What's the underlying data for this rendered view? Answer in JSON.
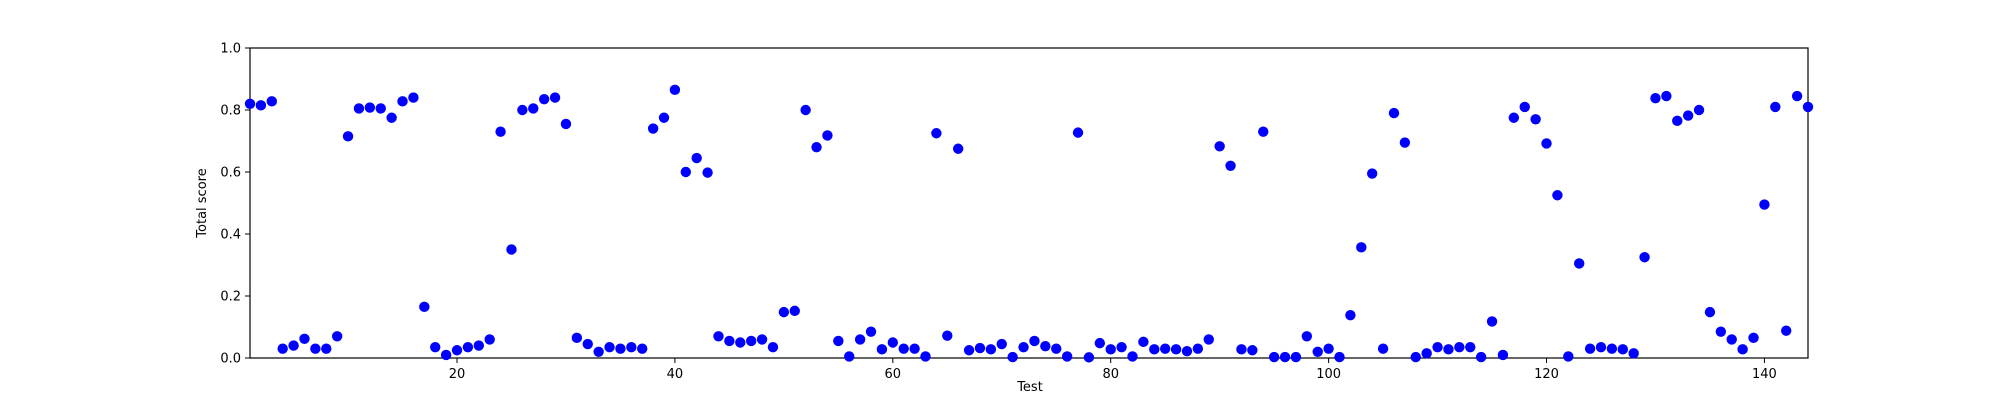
{
  "chart_data": {
    "type": "scatter",
    "title": "",
    "xlabel": "Test",
    "ylabel": "Total score",
    "xlim": [
      1,
      144
    ],
    "ylim": [
      0.0,
      1.0
    ],
    "xticks": [
      20,
      40,
      60,
      80,
      100,
      120,
      140
    ],
    "yticks": [
      0.0,
      0.2,
      0.4,
      0.6,
      0.8,
      1.0
    ],
    "ytick_labels": [
      "0.0",
      "0.2",
      "0.4",
      "0.6",
      "0.8",
      "1.0"
    ],
    "grid": false,
    "marker_color": "#0000ff",
    "points": [
      {
        "x": 1,
        "y": 0.82
      },
      {
        "x": 2,
        "y": 0.815
      },
      {
        "x": 3,
        "y": 0.828
      },
      {
        "x": 4,
        "y": 0.03
      },
      {
        "x": 5,
        "y": 0.04
      },
      {
        "x": 6,
        "y": 0.062
      },
      {
        "x": 7,
        "y": 0.03
      },
      {
        "x": 8,
        "y": 0.03
      },
      {
        "x": 9,
        "y": 0.07
      },
      {
        "x": 10,
        "y": 0.715
      },
      {
        "x": 11,
        "y": 0.805
      },
      {
        "x": 12,
        "y": 0.808
      },
      {
        "x": 13,
        "y": 0.805
      },
      {
        "x": 14,
        "y": 0.775
      },
      {
        "x": 15,
        "y": 0.828
      },
      {
        "x": 16,
        "y": 0.84
      },
      {
        "x": 17,
        "y": 0.165
      },
      {
        "x": 18,
        "y": 0.035
      },
      {
        "x": 19,
        "y": 0.01
      },
      {
        "x": 20,
        "y": 0.025
      },
      {
        "x": 21,
        "y": 0.035
      },
      {
        "x": 22,
        "y": 0.04
      },
      {
        "x": 23,
        "y": 0.06
      },
      {
        "x": 24,
        "y": 0.73
      },
      {
        "x": 25,
        "y": 0.35
      },
      {
        "x": 26,
        "y": 0.8
      },
      {
        "x": 27,
        "y": 0.805
      },
      {
        "x": 28,
        "y": 0.835
      },
      {
        "x": 29,
        "y": 0.84
      },
      {
        "x": 30,
        "y": 0.755
      },
      {
        "x": 31,
        "y": 0.065
      },
      {
        "x": 32,
        "y": 0.045
      },
      {
        "x": 33,
        "y": 0.02
      },
      {
        "x": 34,
        "y": 0.035
      },
      {
        "x": 35,
        "y": 0.03
      },
      {
        "x": 36,
        "y": 0.035
      },
      {
        "x": 37,
        "y": 0.03
      },
      {
        "x": 38,
        "y": 0.74
      },
      {
        "x": 39,
        "y": 0.775
      },
      {
        "x": 40,
        "y": 0.865
      },
      {
        "x": 41,
        "y": 0.6
      },
      {
        "x": 42,
        "y": 0.645
      },
      {
        "x": 43,
        "y": 0.598
      },
      {
        "x": 44,
        "y": 0.07
      },
      {
        "x": 45,
        "y": 0.055
      },
      {
        "x": 46,
        "y": 0.05
      },
      {
        "x": 47,
        "y": 0.055
      },
      {
        "x": 48,
        "y": 0.06
      },
      {
        "x": 49,
        "y": 0.035
      },
      {
        "x": 50,
        "y": 0.148
      },
      {
        "x": 51,
        "y": 0.152
      },
      {
        "x": 52,
        "y": 0.8
      },
      {
        "x": 53,
        "y": 0.68
      },
      {
        "x": 54,
        "y": 0.718
      },
      {
        "x": 55,
        "y": 0.055
      },
      {
        "x": 56,
        "y": 0.005
      },
      {
        "x": 57,
        "y": 0.06
      },
      {
        "x": 58,
        "y": 0.085
      },
      {
        "x": 59,
        "y": 0.028
      },
      {
        "x": 60,
        "y": 0.05
      },
      {
        "x": 61,
        "y": 0.03
      },
      {
        "x": 62,
        "y": 0.03
      },
      {
        "x": 63,
        "y": 0.005
      },
      {
        "x": 64,
        "y": 0.725
      },
      {
        "x": 65,
        "y": 0.072
      },
      {
        "x": 66,
        "y": 0.675
      },
      {
        "x": 67,
        "y": 0.025
      },
      {
        "x": 68,
        "y": 0.032
      },
      {
        "x": 69,
        "y": 0.028
      },
      {
        "x": 70,
        "y": 0.045
      },
      {
        "x": 71,
        "y": 0.003
      },
      {
        "x": 72,
        "y": 0.035
      },
      {
        "x": 73,
        "y": 0.055
      },
      {
        "x": 74,
        "y": 0.038
      },
      {
        "x": 75,
        "y": 0.03
      },
      {
        "x": 76,
        "y": 0.005
      },
      {
        "x": 77,
        "y": 0.727
      },
      {
        "x": 78,
        "y": 0.002
      },
      {
        "x": 79,
        "y": 0.048
      },
      {
        "x": 80,
        "y": 0.028
      },
      {
        "x": 81,
        "y": 0.035
      },
      {
        "x": 82,
        "y": 0.005
      },
      {
        "x": 83,
        "y": 0.052
      },
      {
        "x": 84,
        "y": 0.028
      },
      {
        "x": 85,
        "y": 0.03
      },
      {
        "x": 86,
        "y": 0.028
      },
      {
        "x": 87,
        "y": 0.022
      },
      {
        "x": 88,
        "y": 0.03
      },
      {
        "x": 89,
        "y": 0.06
      },
      {
        "x": 90,
        "y": 0.683
      },
      {
        "x": 91,
        "y": 0.62
      },
      {
        "x": 92,
        "y": 0.028
      },
      {
        "x": 93,
        "y": 0.025
      },
      {
        "x": 94,
        "y": 0.73
      },
      {
        "x": 95,
        "y": 0.003
      },
      {
        "x": 96,
        "y": 0.003
      },
      {
        "x": 97,
        "y": 0.003
      },
      {
        "x": 98,
        "y": 0.07
      },
      {
        "x": 99,
        "y": 0.02
      },
      {
        "x": 100,
        "y": 0.03
      },
      {
        "x": 101,
        "y": 0.003
      },
      {
        "x": 102,
        "y": 0.138
      },
      {
        "x": 103,
        "y": 0.357
      },
      {
        "x": 104,
        "y": 0.595
      },
      {
        "x": 105,
        "y": 0.03
      },
      {
        "x": 106,
        "y": 0.79
      },
      {
        "x": 107,
        "y": 0.695
      },
      {
        "x": 108,
        "y": 0.003
      },
      {
        "x": 109,
        "y": 0.015
      },
      {
        "x": 110,
        "y": 0.035
      },
      {
        "x": 111,
        "y": 0.028
      },
      {
        "x": 112,
        "y": 0.035
      },
      {
        "x": 113,
        "y": 0.035
      },
      {
        "x": 114,
        "y": 0.003
      },
      {
        "x": 115,
        "y": 0.118
      },
      {
        "x": 116,
        "y": 0.01
      },
      {
        "x": 117,
        "y": 0.775
      },
      {
        "x": 118,
        "y": 0.81
      },
      {
        "x": 119,
        "y": 0.77
      },
      {
        "x": 120,
        "y": 0.692
      },
      {
        "x": 121,
        "y": 0.525
      },
      {
        "x": 122,
        "y": 0.005
      },
      {
        "x": 123,
        "y": 0.305
      },
      {
        "x": 124,
        "y": 0.03
      },
      {
        "x": 125,
        "y": 0.035
      },
      {
        "x": 126,
        "y": 0.03
      },
      {
        "x": 127,
        "y": 0.028
      },
      {
        "x": 128,
        "y": 0.015
      },
      {
        "x": 129,
        "y": 0.325
      },
      {
        "x": 130,
        "y": 0.838
      },
      {
        "x": 131,
        "y": 0.845
      },
      {
        "x": 132,
        "y": 0.765
      },
      {
        "x": 133,
        "y": 0.782
      },
      {
        "x": 134,
        "y": 0.8
      },
      {
        "x": 135,
        "y": 0.148
      },
      {
        "x": 136,
        "y": 0.085
      },
      {
        "x": 137,
        "y": 0.06
      },
      {
        "x": 138,
        "y": 0.028
      },
      {
        "x": 139,
        "y": 0.065
      },
      {
        "x": 140,
        "y": 0.495
      },
      {
        "x": 141,
        "y": 0.81
      },
      {
        "x": 142,
        "y": 0.088
      },
      {
        "x": 143,
        "y": 0.845
      },
      {
        "x": 144,
        "y": 0.81
      }
    ]
  }
}
